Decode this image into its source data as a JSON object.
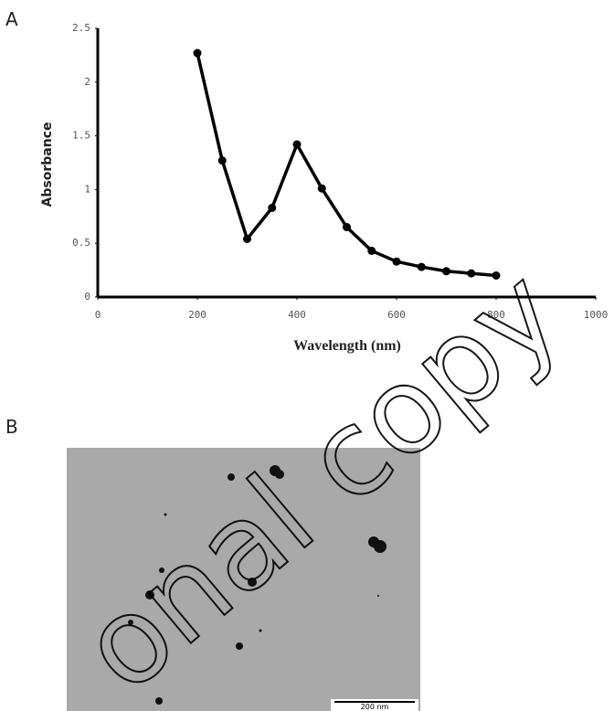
{
  "chart_data": {
    "type": "line",
    "panel_label": "A",
    "x_label": "Wavelength (nm)",
    "y_label": "Absorbance",
    "x": [
      200,
      250,
      300,
      350,
      400,
      450,
      500,
      550,
      600,
      650,
      700,
      750,
      800
    ],
    "series": [
      {
        "color": "#000000",
        "values": [
          2.27,
          1.27,
          0.54,
          0.83,
          1.42,
          1.01,
          0.65,
          0.43,
          0.33,
          0.28,
          0.24,
          0.22,
          0.2
        ]
      }
    ],
    "xlim": [
      0,
      1000
    ],
    "xticks": [
      0,
      200,
      400,
      600,
      800,
      1000
    ],
    "ylim": [
      0,
      2.5
    ],
    "yticks": [
      0,
      0.5,
      1,
      1.5,
      2,
      2.5
    ]
  },
  "image_panel": {
    "panel_label": "B",
    "scale_bar": "200 nm"
  },
  "watermark": "onal copy"
}
